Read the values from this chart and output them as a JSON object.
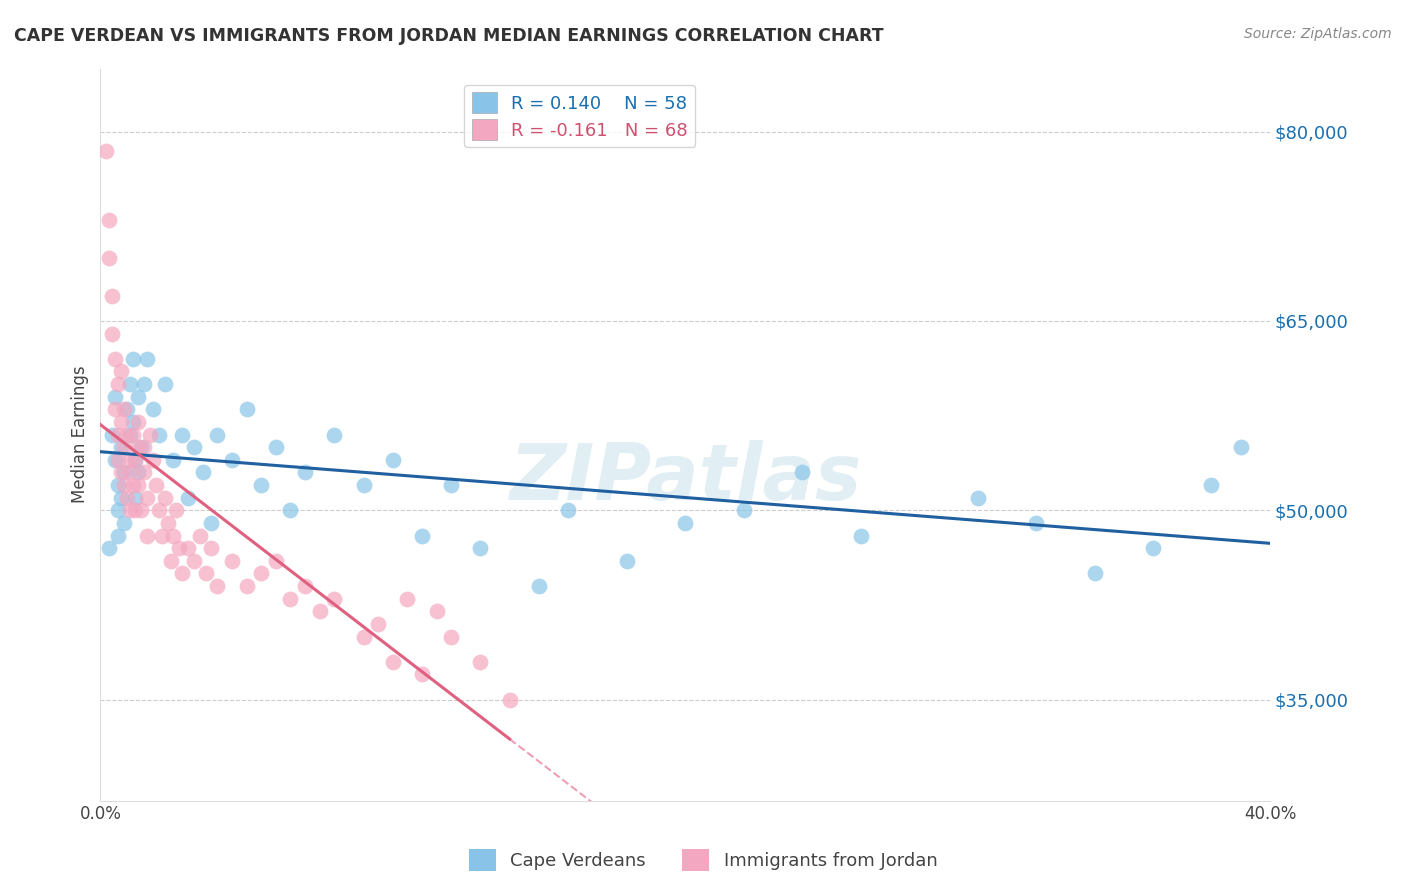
{
  "title": "CAPE VERDEAN VS IMMIGRANTS FROM JORDAN MEDIAN EARNINGS CORRELATION CHART",
  "source": "Source: ZipAtlas.com",
  "ylabel": "Median Earnings",
  "xlim": [
    0,
    0.4
  ],
  "ylim": [
    27000,
    85000
  ],
  "xticks": [
    0.0,
    0.05,
    0.1,
    0.15,
    0.2,
    0.25,
    0.3,
    0.35,
    0.4
  ],
  "xticklabels": [
    "0.0%",
    "",
    "",
    "",
    "",
    "",
    "",
    "",
    "40.0%"
  ],
  "yticks_right": [
    35000,
    50000,
    65000,
    80000
  ],
  "ytick_labels_right": [
    "$35,000",
    "$50,000",
    "$65,000",
    "$80,000"
  ],
  "blue_color": "#89c4e8",
  "pink_color": "#f4a7c0",
  "blue_line_color": "#2060a0",
  "pink_line_color": "#e06080",
  "blue_R": 0.14,
  "blue_N": 58,
  "pink_R": -0.161,
  "pink_N": 68,
  "legend_label_blue": "Cape Verdeans",
  "legend_label_pink": "Immigrants from Jordan",
  "watermark": "ZIPatlas",
  "background_color": "#ffffff",
  "grid_color": "#cccccc",
  "blue_scatter_x": [
    0.003,
    0.004,
    0.005,
    0.005,
    0.006,
    0.006,
    0.006,
    0.007,
    0.007,
    0.008,
    0.008,
    0.009,
    0.01,
    0.01,
    0.011,
    0.011,
    0.012,
    0.012,
    0.013,
    0.013,
    0.014,
    0.015,
    0.016,
    0.018,
    0.02,
    0.022,
    0.025,
    0.028,
    0.03,
    0.032,
    0.035,
    0.038,
    0.04,
    0.045,
    0.05,
    0.055,
    0.06,
    0.065,
    0.07,
    0.08,
    0.09,
    0.1,
    0.11,
    0.12,
    0.13,
    0.15,
    0.16,
    0.18,
    0.2,
    0.22,
    0.24,
    0.26,
    0.3,
    0.32,
    0.34,
    0.36,
    0.38,
    0.39
  ],
  "blue_scatter_y": [
    47000,
    56000,
    59000,
    54000,
    50000,
    52000,
    48000,
    51000,
    55000,
    53000,
    49000,
    58000,
    60000,
    56000,
    62000,
    57000,
    54000,
    51000,
    59000,
    53000,
    55000,
    60000,
    62000,
    58000,
    56000,
    60000,
    54000,
    56000,
    51000,
    55000,
    53000,
    49000,
    56000,
    54000,
    58000,
    52000,
    55000,
    50000,
    53000,
    56000,
    52000,
    54000,
    48000,
    52000,
    47000,
    44000,
    50000,
    46000,
    49000,
    50000,
    53000,
    48000,
    51000,
    49000,
    45000,
    47000,
    52000,
    55000
  ],
  "pink_scatter_x": [
    0.002,
    0.003,
    0.003,
    0.004,
    0.004,
    0.005,
    0.005,
    0.006,
    0.006,
    0.006,
    0.007,
    0.007,
    0.007,
    0.008,
    0.008,
    0.008,
    0.009,
    0.009,
    0.01,
    0.01,
    0.01,
    0.011,
    0.011,
    0.012,
    0.012,
    0.013,
    0.013,
    0.013,
    0.014,
    0.015,
    0.015,
    0.016,
    0.016,
    0.017,
    0.018,
    0.019,
    0.02,
    0.021,
    0.022,
    0.023,
    0.024,
    0.025,
    0.026,
    0.027,
    0.028,
    0.03,
    0.032,
    0.034,
    0.036,
    0.038,
    0.04,
    0.045,
    0.05,
    0.055,
    0.06,
    0.065,
    0.07,
    0.075,
    0.08,
    0.09,
    0.095,
    0.1,
    0.105,
    0.11,
    0.115,
    0.12,
    0.13,
    0.14
  ],
  "pink_scatter_y": [
    78500,
    70000,
    73000,
    67000,
    64000,
    62000,
    58000,
    56000,
    60000,
    54000,
    57000,
    53000,
    61000,
    55000,
    58000,
    52000,
    56000,
    51000,
    54000,
    50000,
    53000,
    52000,
    56000,
    54000,
    50000,
    57000,
    55000,
    52000,
    50000,
    55000,
    53000,
    51000,
    48000,
    56000,
    54000,
    52000,
    50000,
    48000,
    51000,
    49000,
    46000,
    48000,
    50000,
    47000,
    45000,
    47000,
    46000,
    48000,
    45000,
    47000,
    44000,
    46000,
    44000,
    45000,
    46000,
    43000,
    44000,
    42000,
    43000,
    40000,
    41000,
    38000,
    43000,
    37000,
    42000,
    40000,
    38000,
    35000
  ]
}
